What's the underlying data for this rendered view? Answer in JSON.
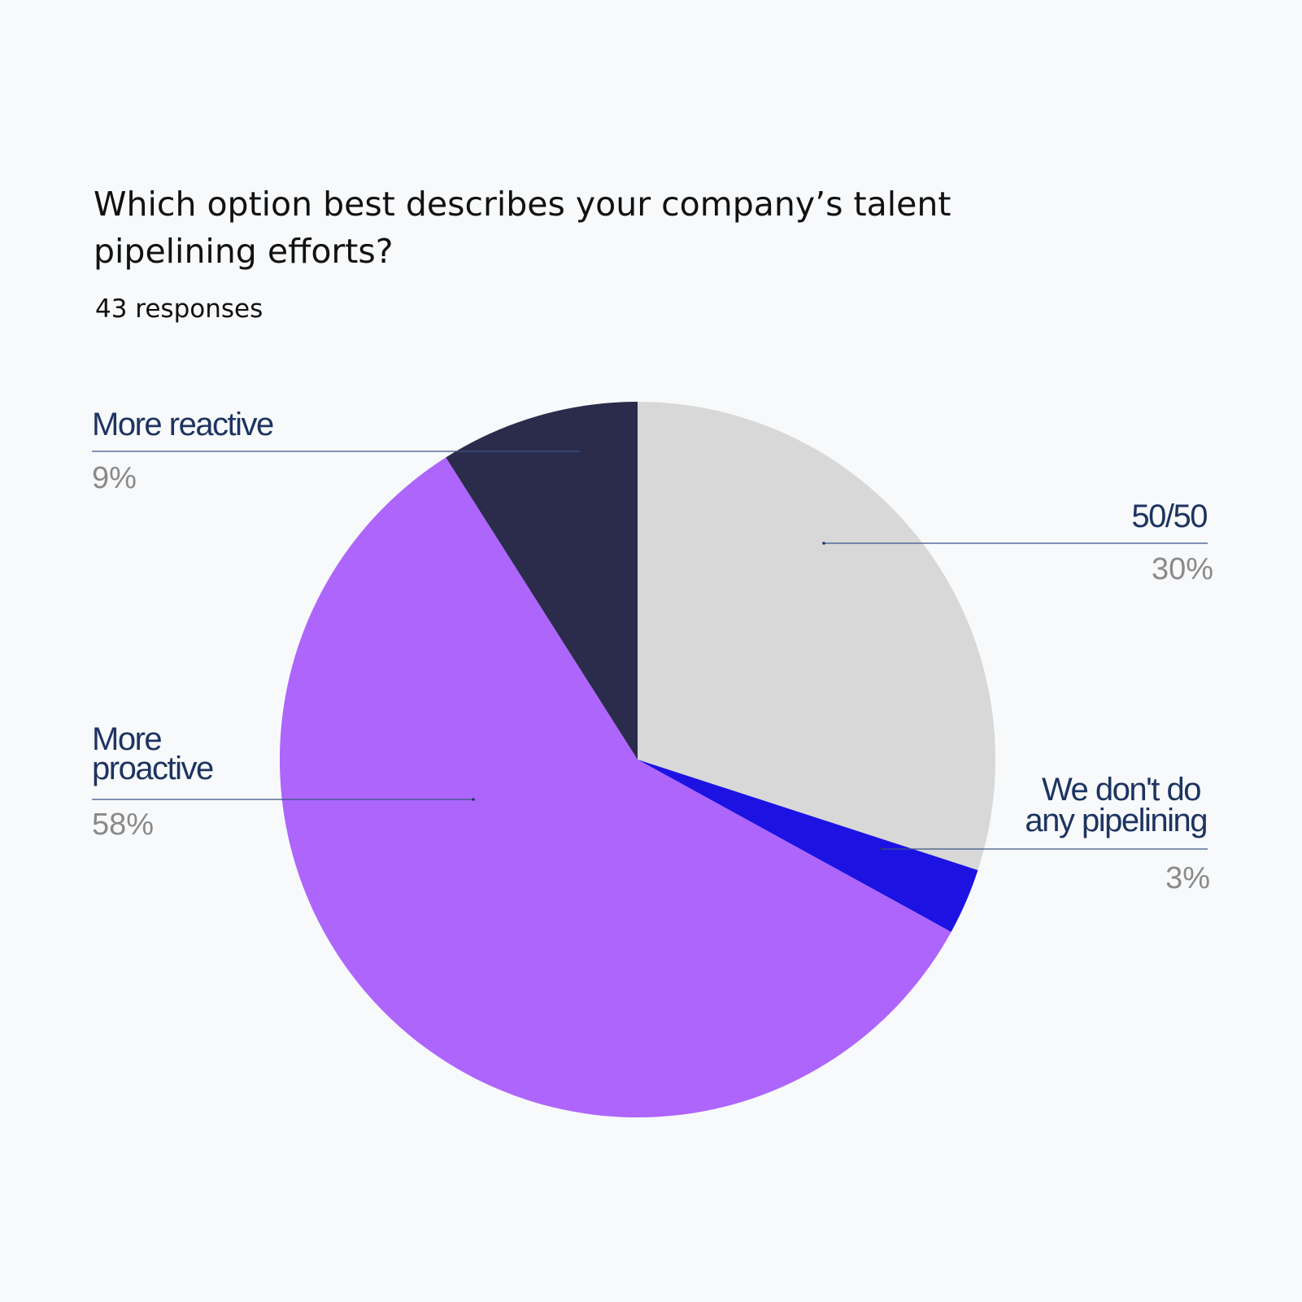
{
  "chart_data": {
    "type": "pie",
    "title": "Which option best describes your company’s talent pipelining efforts?",
    "subtitle": "43 responses",
    "start_angle_deg": 0,
    "direction": "clockwise",
    "slices": [
      {
        "label": "50/50",
        "value": 30,
        "value_label": "30%",
        "color": "#d8d8d8"
      },
      {
        "label": "We don't do any pipelining",
        "value": 3,
        "value_label": "3%",
        "color": "#1c13e3"
      },
      {
        "label": "More proactive",
        "value": 58,
        "value_label": "58%",
        "color": "#ad65fc"
      },
      {
        "label": "More reactive",
        "value": 9,
        "value_label": "9%",
        "color": "#2b2b4c"
      }
    ],
    "label_color": "#1d3461",
    "value_label_color": "#8a8a8a",
    "background": "#f8f9fb"
  }
}
